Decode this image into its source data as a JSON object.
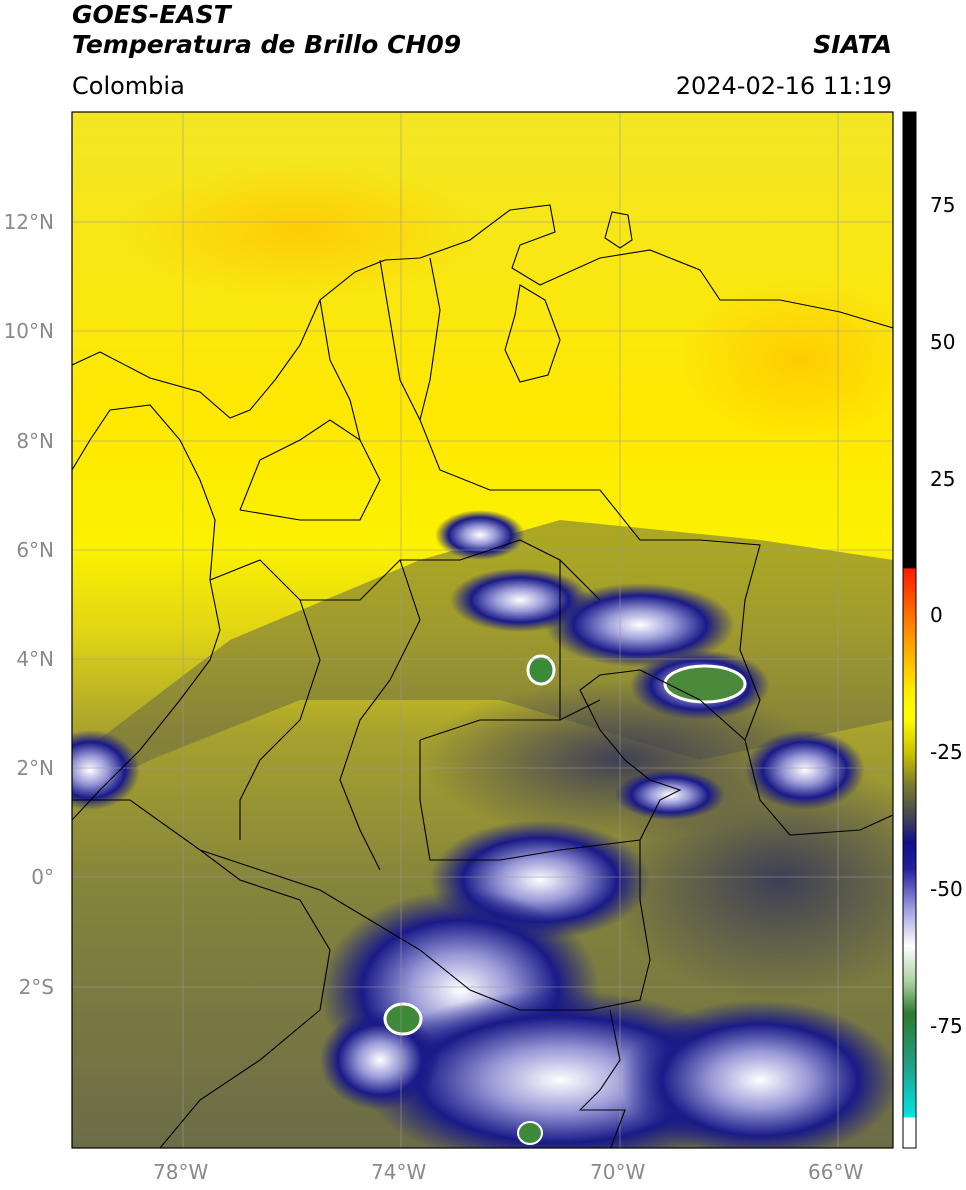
{
  "header": {
    "satellite": "GOES-EAST",
    "product": "Temperatura de Brillo CH09",
    "region": "Colombia",
    "brand": "SIATA",
    "timestamp": "2024-02-16 11:19"
  },
  "map": {
    "lon_range": [
      -80,
      -65
    ],
    "lat_range": [
      -5,
      14
    ],
    "lat_ticks": [
      {
        "value": 12,
        "label": "12°N"
      },
      {
        "value": 10,
        "label": "10°N"
      },
      {
        "value": 8,
        "label": "8°N"
      },
      {
        "value": 6,
        "label": "6°N"
      },
      {
        "value": 4,
        "label": "4°N"
      },
      {
        "value": 2,
        "label": "2°N"
      },
      {
        "value": 0,
        "label": "0°"
      },
      {
        "value": -2,
        "label": "2°S"
      }
    ],
    "lon_ticks": [
      {
        "value": -78,
        "label": "78°W"
      },
      {
        "value": -74,
        "label": "74°W"
      },
      {
        "value": -70,
        "label": "70°W"
      },
      {
        "value": -66,
        "label": "66°W"
      }
    ],
    "grid": true
  },
  "colorbar": {
    "range": [
      -95,
      90
    ],
    "ticks": [
      {
        "value": 75,
        "label": "75"
      },
      {
        "value": 50,
        "label": "50"
      },
      {
        "value": 25,
        "label": "25"
      },
      {
        "value": 0,
        "label": "0"
      },
      {
        "value": -25,
        "label": "-25"
      },
      {
        "value": -50,
        "label": "-50"
      },
      {
        "value": -75,
        "label": "-75"
      }
    ],
    "colors": {
      "black": "#000000",
      "red": "#ff2000",
      "orange": "#ff8c00",
      "yellow": "#ffff00",
      "olive": "#8a8a30",
      "gray": "#3c3c5a",
      "navy": "#0a0a80",
      "white": "#ffffff",
      "green": "#2e8b2e",
      "teal": "#20b2aa",
      "cyan": "#00e5e5"
    }
  }
}
